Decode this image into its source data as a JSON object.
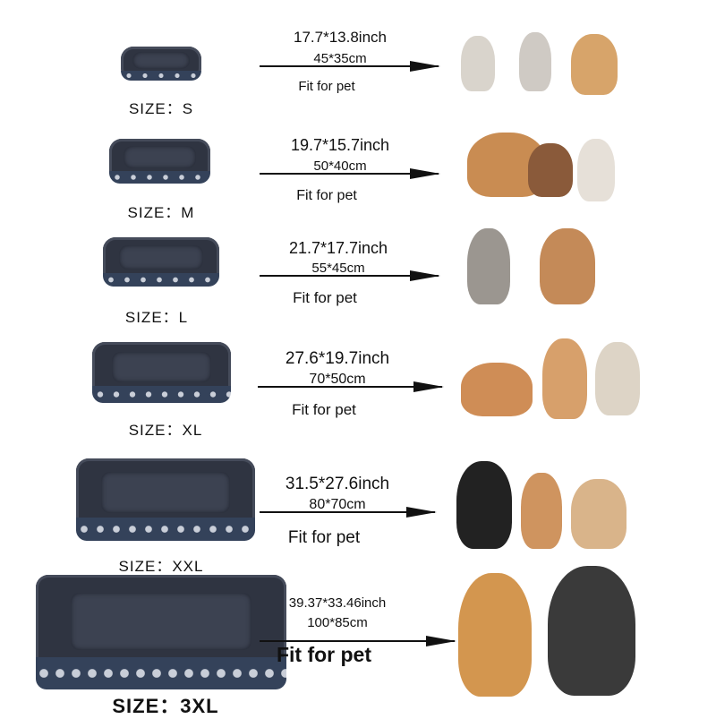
{
  "rows": [
    {
      "size": "SIZE：S",
      "inch": "17.7*13.8inch",
      "cm": "45*35cm",
      "fit": "Fit for pet"
    },
    {
      "size": "SIZE：M",
      "inch": "19.7*15.7inch",
      "cm": "50*40cm",
      "fit": "Fit for pet"
    },
    {
      "size": "SIZE：L",
      "inch": "21.7*17.7inch",
      "cm": "55*45cm",
      "fit": "Fit for pet"
    },
    {
      "size": "SIZE：XL",
      "inch": "27.6*19.7inch",
      "cm": "70*50cm",
      "fit": "Fit for pet"
    },
    {
      "size": "SIZE：XXL",
      "inch": "31.5*27.6inch",
      "cm": "80*70cm",
      "fit": "Fit for pet"
    },
    {
      "size": "SIZE：3XL",
      "inch": "39.37*33.46inch",
      "cm": "100*85cm",
      "fit": "Fit for pet"
    }
  ],
  "colors": {
    "bed": "#2f3441",
    "band": "#34425a",
    "text": "#111111"
  }
}
